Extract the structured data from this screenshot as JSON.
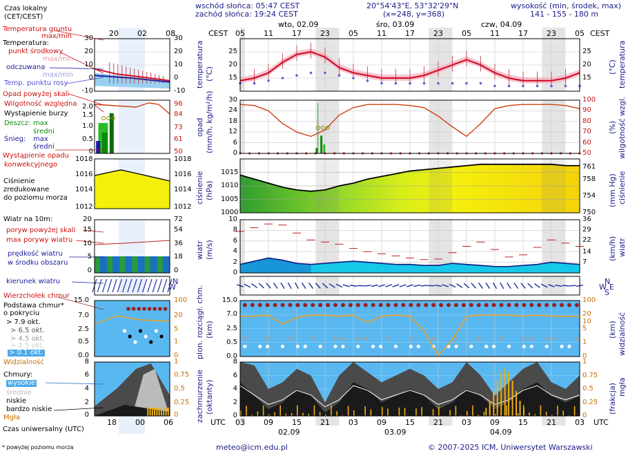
{
  "header": {
    "sunrise": "wschód słońca: 05:47 CEST",
    "sunset": "zachód słońca: 19:24 CEST",
    "coords": "20°54'43\"E, 53°32'29\"N",
    "grid": "(x=248,  y=368)",
    "height_title": "wysokość (min, środek, max)",
    "height_values": "141 - 155 - 180 m"
  },
  "legend": {
    "local_time": "Czas lokalny",
    "local_time2": "(CET/CEST)",
    "ground_temp": "Temperatura gruntu",
    "maxmin": "max/min",
    "temperature": "Temperatura:",
    "mid_point": "punkt środkowy",
    "max_min": "max/min",
    "felt": "odczuwana",
    "felt_maxmin": "max/min",
    "dew": "Temp. punktu rosy",
    "precip_over": "Opad powyżej skali",
    "humidity": "Wilgotność względna",
    "storm": "Wystąpienie burzy",
    "rain": "Deszcz:",
    "rain_max": "max",
    "rain_mid": "średni",
    "snow": "Śnieg:",
    "snow_max": "max",
    "snow_mid": "średni",
    "precip_occ": "Wystąpienie opadu",
    "precip_occ2": "konwekcyjnego",
    "pressure": "Ciśnienie",
    "pressure2": "zredukowane",
    "pressure3": "do poziomu morza",
    "wind10": "Wiatr na 10m:",
    "gust_over": "poryw powyżej skali",
    "gust_max": "max porywy wiatru",
    "wind_speed": "prędkość wiatru",
    "wind_area": "w środku obszaru",
    "wind_dir": "kierunek wiatru",
    "cloud_top": "Wierzchołek chmur",
    "cloud_base": "Podstawa chmur*",
    "cloud_base2": "o pokryciu",
    "okt79": "> 7.9 okt.",
    "okt65": "> 6.5 okt.",
    "okt45": "> 4.5 okt.",
    "okt25": "> 2.5 okt.",
    "okt01": "> 0.1 okt.",
    "visibility": "Widzialność",
    "clouds": "Chmury:",
    "high": "wysokie",
    "mid": "średnie",
    "low": "niskie",
    "vlow": "bardzo niskie",
    "fog": "Mgła",
    "utc_label": "Czas uniwersalny (UTC)",
    "footnote": "* powyżej poziomu morza"
  },
  "footer": {
    "email": "meteo@icm.edu.pl",
    "copyright": "© 2007-2025 ICM, Uniwersytet Warszawski"
  },
  "main": {
    "cest": "CEST",
    "utc": "UTC",
    "days_top": [
      "wto, 02.09",
      "śro, 03.09",
      "czw, 04.09"
    ],
    "days_bottom": [
      "02.09",
      "03.09",
      "04.09"
    ],
    "hours_top": [
      "05",
      "11",
      "17",
      "23",
      "05",
      "11",
      "17",
      "23",
      "05",
      "11",
      "17",
      "23",
      "05"
    ],
    "hours_bottom": [
      "03",
      "09",
      "15",
      "21",
      "03",
      "09",
      "15",
      "21",
      "03",
      "09",
      "15",
      "21",
      "03"
    ],
    "legend_hours_top": [
      "20",
      "02",
      "08"
    ],
    "legend_hours_bottom": [
      "18",
      "00",
      "06"
    ],
    "panel_labels": {
      "temp_l": "temperatura",
      "temp_l2": "(°C)",
      "temp_r": "temperatura",
      "temp_r2": "(°C)",
      "precip_l": "opad",
      "precip_l2": "(mm/h, kg/m²/h)",
      "precip_r": "wilgotność wzgl.",
      "precip_r2": "(%)",
      "press_l": "ciśnienie",
      "press_l2": "(hPa)",
      "press_r": "ciśnienie",
      "press_r2": "(mm Hg)",
      "wind_l": "wiatr",
      "wind_l2": "(m/s)",
      "wind_r": "wiatr",
      "wind_r2": "(km/h)",
      "cloud_l": "pion. rozciągł. chm.",
      "cloud_l2": "(km)",
      "cloud_r": "widzialność",
      "cloud_r2": "(km)",
      "cover_l": "zachmurzenie",
      "cover_l2": "(oktanty)",
      "cover_r": "mgła",
      "cover_r2": "(frakcja)"
    }
  },
  "chart_data": [
    {
      "type": "line",
      "title": "temperatura (°C)",
      "x": [
        0,
        3,
        6,
        9,
        12,
        15,
        18,
        21,
        24,
        27,
        30,
        33,
        36,
        39,
        42,
        45,
        48,
        51,
        54,
        57,
        60,
        63,
        66,
        69,
        72
      ],
      "series": [
        {
          "name": "temperatura",
          "values": [
            14,
            15,
            17,
            21,
            24,
            25,
            23,
            19,
            17,
            16,
            15,
            15,
            15,
            16,
            18,
            20,
            22,
            20,
            17,
            15,
            14,
            14,
            14,
            15,
            17
          ]
        },
        {
          "name": "punkt rosy",
          "values": [
            13,
            13,
            14,
            15,
            16,
            17,
            17,
            16,
            15,
            14,
            13,
            13,
            13,
            13,
            13,
            13,
            13,
            13,
            12,
            12,
            12,
            12,
            12,
            12,
            12
          ]
        }
      ],
      "ylim": [
        10,
        30
      ],
      "yticks": [
        15,
        20,
        25
      ]
    },
    {
      "type": "line",
      "title": "opad (mm/h) / wilgotność (%)",
      "x": [
        0,
        3,
        6,
        9,
        12,
        15,
        18,
        21,
        24,
        27,
        30,
        33,
        36,
        39,
        42,
        45,
        48,
        51,
        54,
        57,
        60,
        63,
        66,
        69,
        72
      ],
      "series": [
        {
          "name": "wilgotność",
          "values": [
            96,
            95,
            90,
            78,
            70,
            66,
            72,
            86,
            93,
            96,
            96,
            96,
            95,
            93,
            85,
            75,
            66,
            78,
            92,
            95,
            96,
            96,
            96,
            95,
            92
          ]
        }
      ],
      "yticks_left": [
        0,
        6,
        12,
        18,
        24,
        30
      ],
      "yticks_right": [
        50,
        60,
        70,
        80,
        90,
        100
      ]
    },
    {
      "type": "area",
      "title": "ciśnienie (hPa)",
      "x": [
        0,
        3,
        6,
        9,
        12,
        15,
        18,
        21,
        24,
        27,
        30,
        33,
        36,
        39,
        42,
        45,
        48,
        51,
        54,
        57,
        60,
        63,
        66,
        69,
        72
      ],
      "series": [
        {
          "name": "ciśnienie",
          "values": [
            1014,
            1012.5,
            1011,
            1009.5,
            1008.5,
            1008,
            1008.5,
            1010,
            1011,
            1012.5,
            1013.5,
            1014.5,
            1015.5,
            1016,
            1016.5,
            1017,
            1017.5,
            1018,
            1018,
            1018,
            1018,
            1018,
            1018,
            1017.5,
            1017.5
          ]
        }
      ],
      "ylim": [
        1000,
        1020
      ],
      "yticks": [
        1005,
        1010,
        1015
      ],
      "yticks_right": [
        750,
        754,
        758,
        761
      ]
    },
    {
      "type": "area",
      "title": "wiatr (m/s)",
      "x": [
        0,
        3,
        6,
        9,
        12,
        15,
        18,
        21,
        24,
        27,
        30,
        33,
        36,
        39,
        42,
        45,
        48,
        51,
        54,
        57,
        60,
        63,
        66,
        69,
        72
      ],
      "series": [
        {
          "name": "prędkość",
          "values": [
            1.6,
            2.2,
            2.8,
            2.4,
            1.8,
            1.6,
            1.8,
            2.0,
            2.2,
            2.0,
            1.8,
            1.6,
            1.6,
            1.4,
            1.4,
            1.8,
            1.6,
            1.4,
            1.2,
            1.2,
            1.4,
            1.6,
            2.0,
            1.8,
            1.6
          ]
        },
        {
          "name": "porywy",
          "values": [
            7.8,
            8.5,
            9.2,
            9.0,
            7.5,
            6.2,
            5.8,
            5.4,
            4.6,
            4.0,
            3.6,
            3.2,
            2.8,
            2.5,
            2.6,
            3.8,
            5.0,
            5.8,
            4.4,
            3.0,
            3.4,
            4.8,
            6.2,
            5.6,
            5.0
          ]
        }
      ],
      "ylim": [
        0,
        10
      ],
      "yticks": [
        0,
        2,
        4,
        6,
        8,
        10
      ],
      "yticks_right": [
        7,
        14,
        22,
        29,
        36
      ]
    },
    {
      "type": "line",
      "title": "pion. rozciągł. chm. (km) / widzialność (km)",
      "yticks": [
        "0.0",
        "0.5",
        "2.5",
        "7.0",
        "15.0"
      ],
      "yticks_right": [
        "0",
        "1",
        "5",
        "10",
        "20",
        "100"
      ]
    },
    {
      "type": "area",
      "title": "zachmurzenie (oktanty) / mgła (frakcja)",
      "yticks": [
        0,
        2,
        4,
        6,
        8
      ],
      "yticks_right": [
        "0",
        "0.25",
        "0.5",
        "0.75",
        "1"
      ]
    }
  ]
}
